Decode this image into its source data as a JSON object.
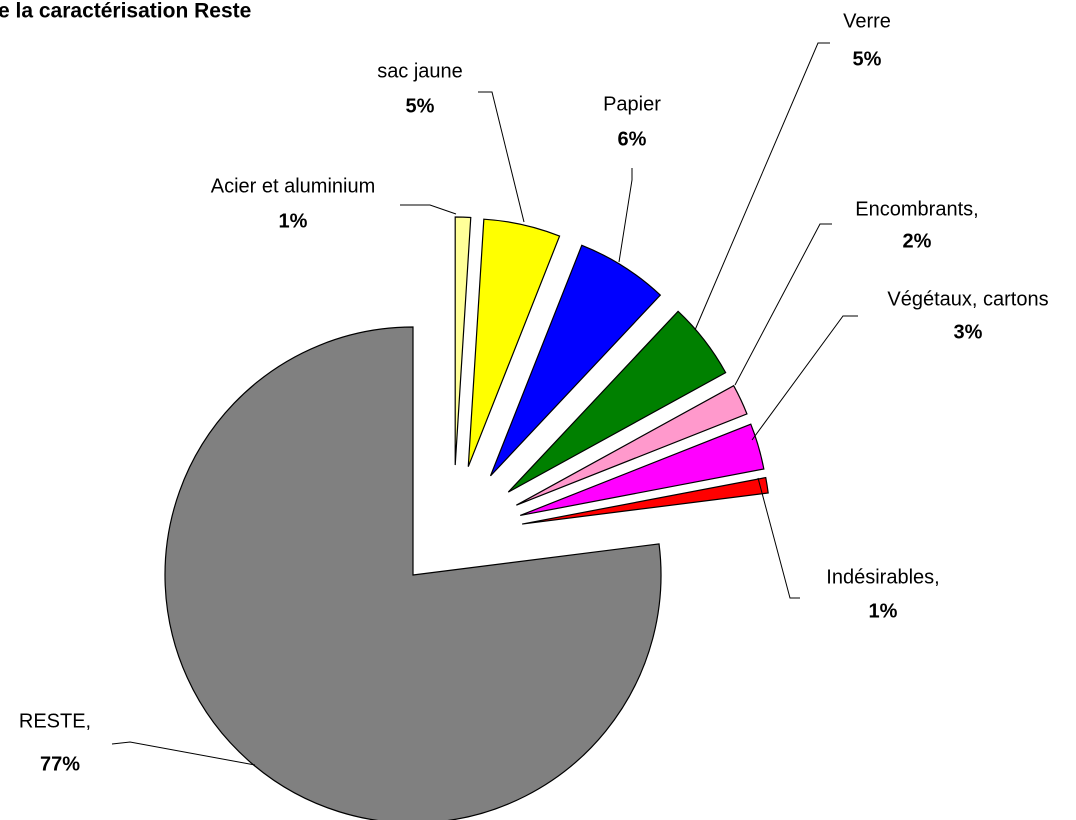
{
  "chart_data": {
    "type": "pie",
    "title": "e la caractérisation Reste",
    "categories": [
      "RESTE,",
      "Acier et aluminium",
      "sac jaune",
      "Papier",
      "Verre",
      "Encombrants,",
      "Végétaux, cartons",
      "Indésirables,"
    ],
    "values": [
      77,
      1,
      5,
      6,
      5,
      2,
      3,
      1
    ],
    "value_labels": [
      "77%",
      "1%",
      "5%",
      "6%",
      "5%",
      "2%",
      "3%",
      "1%"
    ],
    "colors": [
      "#808080",
      "#ffff99",
      "#ffff00",
      "#0000ff",
      "#008000",
      "#ff99cc",
      "#ff00ff",
      "#ff0000"
    ]
  }
}
